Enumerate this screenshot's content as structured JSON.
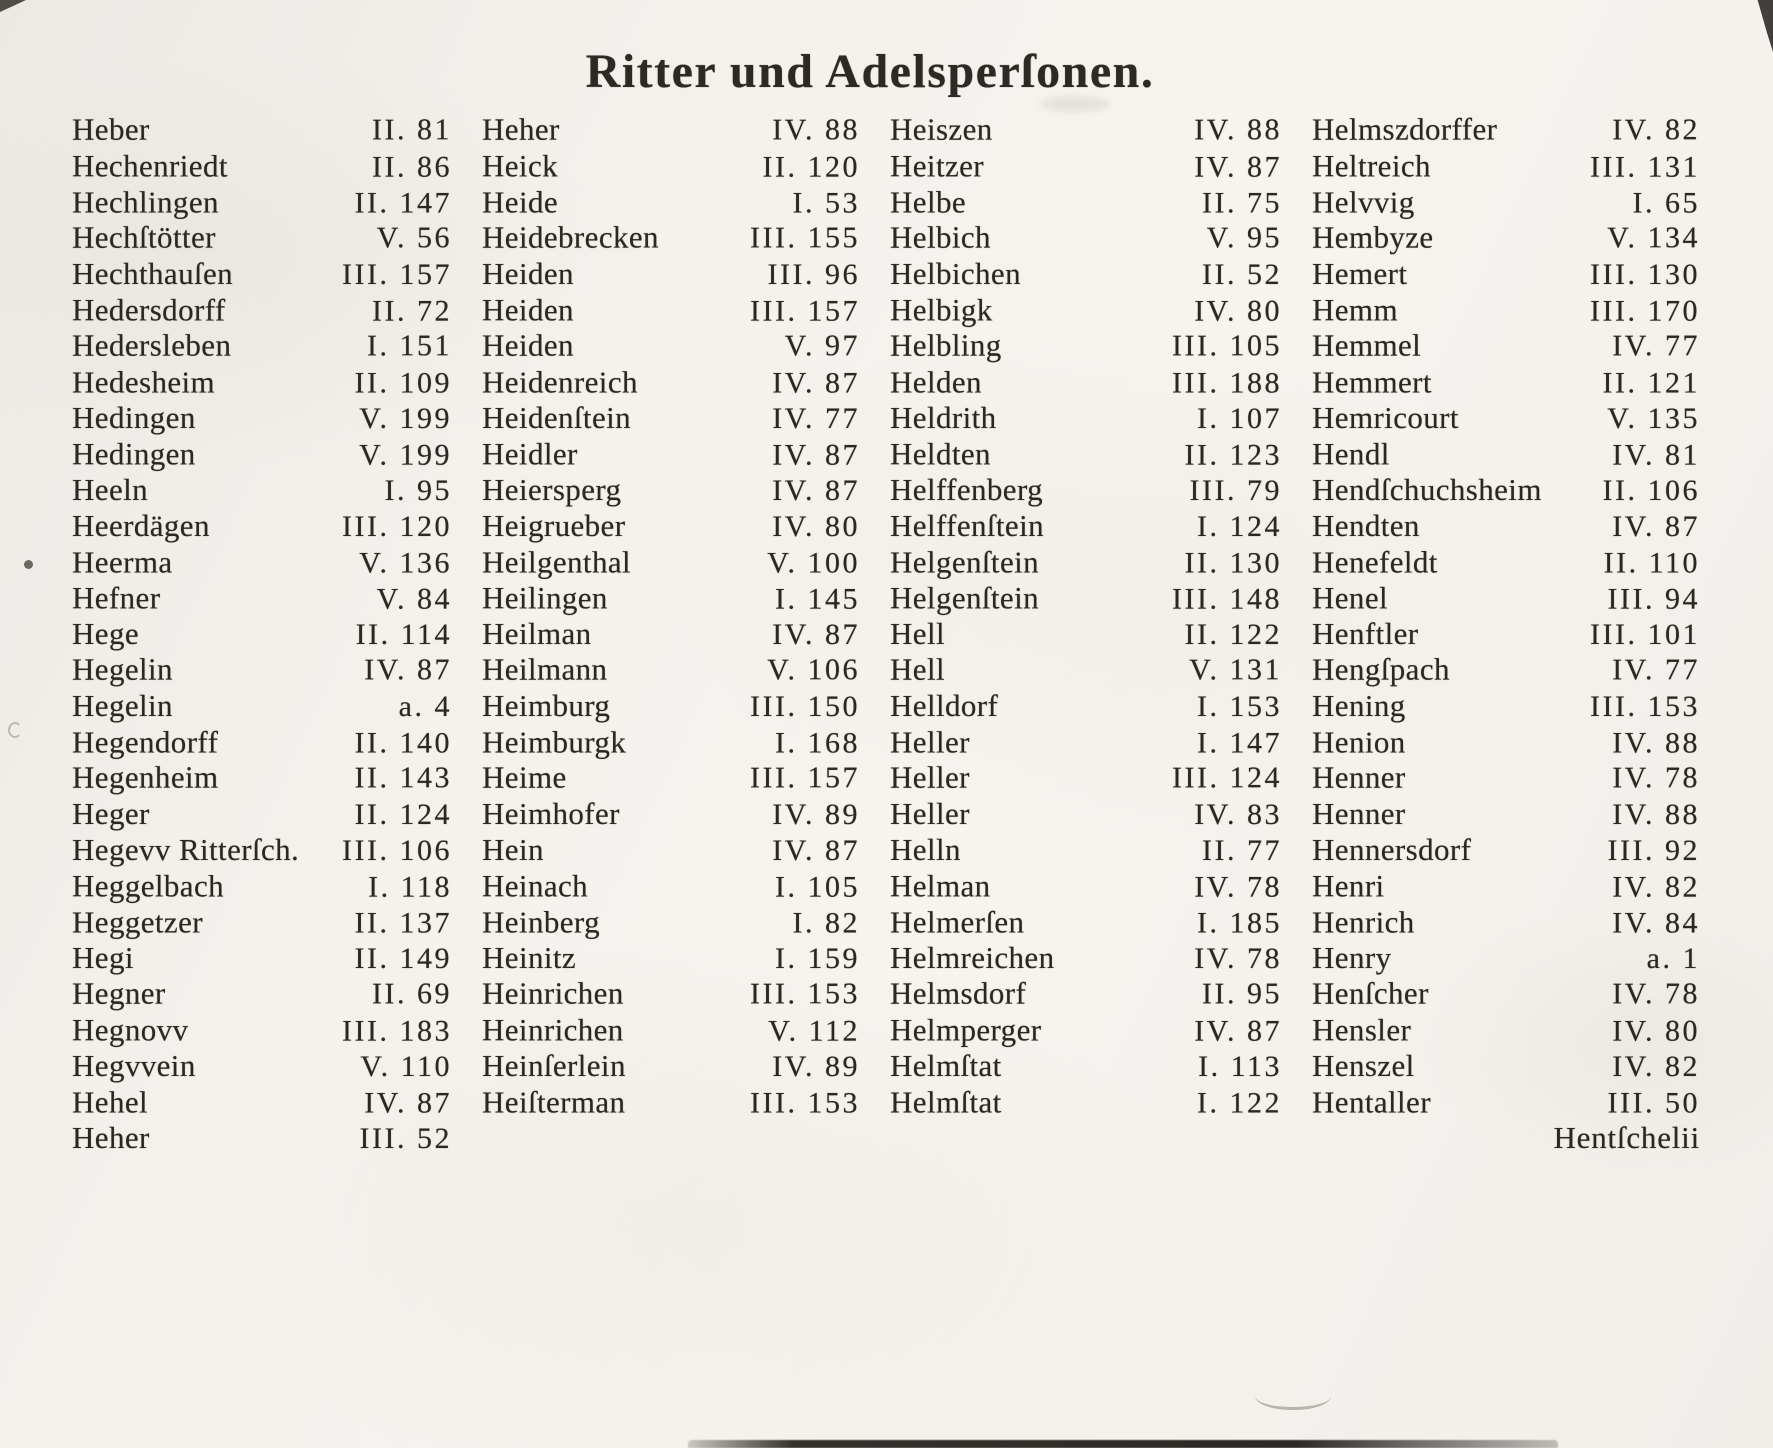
{
  "page": {
    "title": "Ritter und Adelsperſonen.",
    "columns": [
      {
        "entries": [
          {
            "name": "Heber",
            "ref": "II. 81"
          },
          {
            "name": "Hechenriedt",
            "ref": "II. 86"
          },
          {
            "name": "Hechlingen",
            "ref": "II. 147"
          },
          {
            "name": "Hechſtötter",
            "ref": "V. 56"
          },
          {
            "name": "Hechthauſen",
            "ref": "III. 157"
          },
          {
            "name": "Hedersdorff",
            "ref": "II. 72"
          },
          {
            "name": "Hedersleben",
            "ref": "I. 151"
          },
          {
            "name": "Hedesheim",
            "ref": "II. 109"
          },
          {
            "name": "Hedingen",
            "ref": "V. 199"
          },
          {
            "name": "Hedingen",
            "ref": "V. 199"
          },
          {
            "name": "Heeln",
            "ref": "I. 95"
          },
          {
            "name": "Heerdägen",
            "ref": "III. 120"
          },
          {
            "name": "Heerma",
            "ref": "V. 136"
          },
          {
            "name": "Hefner",
            "ref": "V. 84"
          },
          {
            "name": "Hege",
            "ref": "II. 114"
          },
          {
            "name": "Hegelin",
            "ref": "IV. 87"
          },
          {
            "name": "Hegelin",
            "ref": "a. 4"
          },
          {
            "name": "Hegendorff",
            "ref": "II. 140"
          },
          {
            "name": "Hegenheim",
            "ref": "II. 143"
          },
          {
            "name": "Heger",
            "ref": "II. 124"
          },
          {
            "name": "Hegevv Ritterſch.",
            "ref": "III. 106"
          },
          {
            "name": "Heggelbach",
            "ref": "I. 118"
          },
          {
            "name": "Heggetzer",
            "ref": "II. 137"
          },
          {
            "name": "Hegi",
            "ref": "II. 149"
          },
          {
            "name": "Hegner",
            "ref": "II. 69"
          },
          {
            "name": "Hegnovv",
            "ref": "III. 183"
          },
          {
            "name": "Hegvvein",
            "ref": "V. 110"
          },
          {
            "name": "Hehel",
            "ref": "IV. 87"
          },
          {
            "name": "Heher",
            "ref": "III. 52"
          }
        ]
      },
      {
        "entries": [
          {
            "name": "Heher",
            "ref": "IV. 88"
          },
          {
            "name": "Heick",
            "ref": "II. 120"
          },
          {
            "name": "Heide",
            "ref": "I. 53"
          },
          {
            "name": "Heidebrecken",
            "ref": "III. 155"
          },
          {
            "name": "Heiden",
            "ref": "III. 96"
          },
          {
            "name": "Heiden",
            "ref": "III. 157"
          },
          {
            "name": "Heiden",
            "ref": "V. 97"
          },
          {
            "name": "Heidenreich",
            "ref": "IV. 87"
          },
          {
            "name": "Heidenſtein",
            "ref": "IV. 77"
          },
          {
            "name": "Heidler",
            "ref": "IV. 87"
          },
          {
            "name": "Heiersperg",
            "ref": "IV. 87"
          },
          {
            "name": "Heigrueber",
            "ref": "IV. 80"
          },
          {
            "name": "Heilgenthal",
            "ref": "V. 100"
          },
          {
            "name": "Heilingen",
            "ref": "I. 145"
          },
          {
            "name": "Heilman",
            "ref": "IV. 87"
          },
          {
            "name": "Heilmann",
            "ref": "V. 106"
          },
          {
            "name": "Heimburg",
            "ref": "III. 150"
          },
          {
            "name": "Heimburgk",
            "ref": "I. 168"
          },
          {
            "name": "Heime",
            "ref": "III. 157"
          },
          {
            "name": "Heimhofer",
            "ref": "IV. 89"
          },
          {
            "name": "Hein",
            "ref": "IV. 87"
          },
          {
            "name": "Heinach",
            "ref": "I. 105"
          },
          {
            "name": "Heinberg",
            "ref": "I. 82"
          },
          {
            "name": "Heinitz",
            "ref": "I. 159"
          },
          {
            "name": "Heinrichen",
            "ref": "III. 153"
          },
          {
            "name": "Heinrichen",
            "ref": "V. 112"
          },
          {
            "name": "Heinſerlein",
            "ref": "IV. 89"
          },
          {
            "name": "Heiſterman",
            "ref": "III. 153"
          }
        ]
      },
      {
        "entries": [
          {
            "name": "Heiszen",
            "ref": "IV. 88"
          },
          {
            "name": "Heitzer",
            "ref": "IV. 87"
          },
          {
            "name": "Helbe",
            "ref": "II. 75"
          },
          {
            "name": "Helbich",
            "ref": "V. 95"
          },
          {
            "name": "Helbichen",
            "ref": "II. 52"
          },
          {
            "name": "Helbigk",
            "ref": "IV. 80"
          },
          {
            "name": "Helbling",
            "ref": "III. 105"
          },
          {
            "name": "Helden",
            "ref": "III. 188"
          },
          {
            "name": "Heldrith",
            "ref": "I. 107"
          },
          {
            "name": "Heldten",
            "ref": "II. 123"
          },
          {
            "name": "Helffenberg",
            "ref": "III. 79"
          },
          {
            "name": "Helffenſtein",
            "ref": "I. 124"
          },
          {
            "name": "Helgenſtein",
            "ref": "II. 130"
          },
          {
            "name": "Helgenſtein",
            "ref": "III. 148"
          },
          {
            "name": "Hell",
            "ref": "II. 122"
          },
          {
            "name": "Hell",
            "ref": "V. 131"
          },
          {
            "name": "Helldorf",
            "ref": "I. 153"
          },
          {
            "name": "Heller",
            "ref": "I. 147"
          },
          {
            "name": "Heller",
            "ref": "III. 124"
          },
          {
            "name": "Heller",
            "ref": "IV. 83"
          },
          {
            "name": "Helln",
            "ref": "II. 77"
          },
          {
            "name": "Helman",
            "ref": "IV. 78"
          },
          {
            "name": "Helmerſen",
            "ref": "I. 185"
          },
          {
            "name": "Helmreichen",
            "ref": "IV. 78"
          },
          {
            "name": "Helmsdorf",
            "ref": "II. 95"
          },
          {
            "name": "Helmperger",
            "ref": "IV. 87"
          },
          {
            "name": "Helmſtat",
            "ref": "I. 113"
          },
          {
            "name": "Helmſtat",
            "ref": "I. 122"
          }
        ]
      },
      {
        "entries": [
          {
            "name": "Helmszdorffer",
            "ref": "IV. 82"
          },
          {
            "name": "Heltreich",
            "ref": "III. 131"
          },
          {
            "name": "Helvvig",
            "ref": "I. 65"
          },
          {
            "name": "Hembyze",
            "ref": "V. 134"
          },
          {
            "name": "Hemert",
            "ref": "III. 130"
          },
          {
            "name": "Hemm",
            "ref": "III. 170"
          },
          {
            "name": "Hemmel",
            "ref": "IV. 77"
          },
          {
            "name": "Hemmert",
            "ref": "II. 121"
          },
          {
            "name": "Hemricourt",
            "ref": "V. 135"
          },
          {
            "name": "Hendl",
            "ref": "IV. 81"
          },
          {
            "name": "Hendſchuchsheim",
            "ref": "II. 106"
          },
          {
            "name": "Hendten",
            "ref": "IV. 87"
          },
          {
            "name": "Henefeldt",
            "ref": "II. 110"
          },
          {
            "name": "Henel",
            "ref": "III. 94"
          },
          {
            "name": "Henftler",
            "ref": "III. 101"
          },
          {
            "name": "Hengſpach",
            "ref": "IV. 77"
          },
          {
            "name": "Hening",
            "ref": "III. 153"
          },
          {
            "name": "Henion",
            "ref": "IV. 88"
          },
          {
            "name": "Henner",
            "ref": "IV. 78"
          },
          {
            "name": "Henner",
            "ref": "IV. 88"
          },
          {
            "name": "Hennersdorf",
            "ref": "III. 92"
          },
          {
            "name": "Henri",
            "ref": "IV. 82"
          },
          {
            "name": "Henrich",
            "ref": "IV. 84"
          },
          {
            "name": "Henry",
            "ref": "a. 1"
          },
          {
            "name": "Henſcher",
            "ref": "IV. 78"
          },
          {
            "name": "Hensler",
            "ref": "IV. 80"
          },
          {
            "name": "Henszel",
            "ref": "IV. 82"
          },
          {
            "name": "Hentaller",
            "ref": "III. 50"
          }
        ],
        "catchword": "Hentſchelii"
      }
    ]
  }
}
